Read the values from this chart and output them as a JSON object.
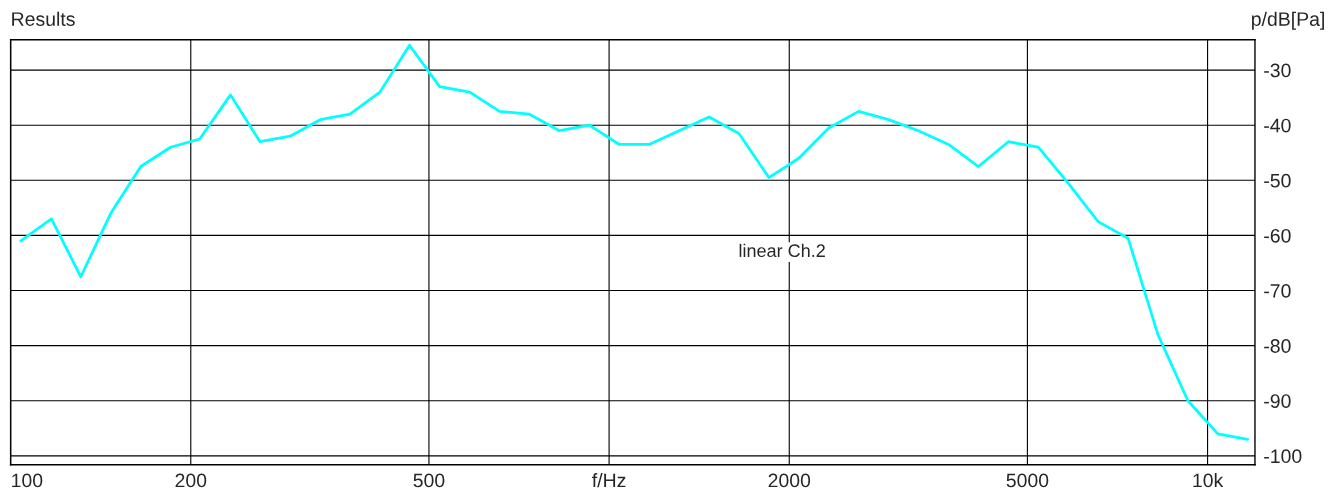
{
  "chart_data": {
    "type": "line",
    "title": "Results",
    "ylabel": "p/dB[Pa]",
    "x": [
      104,
      117,
      131,
      147,
      165,
      185,
      207,
      233,
      261,
      293,
      329,
      369,
      414,
      464,
      521,
      585,
      656,
      736,
      826,
      927,
      1040,
      1167,
      1309,
      1469,
      1648,
      1849,
      2075,
      2328,
      2612,
      2931,
      3289,
      3690,
      4141,
      4646,
      5213,
      5849,
      6563,
      7364,
      8262,
      9271,
      10402,
      11671
    ],
    "series": [
      {
        "name": "linear Ch.2",
        "color": "#00ffff",
        "values": [
          -61,
          -57,
          -67.5,
          -56,
          -47.5,
          -44,
          -42.5,
          -34.5,
          -43,
          -42,
          -39,
          -38,
          -34,
          -25.5,
          -33,
          -34,
          -37.5,
          -38,
          -41,
          -40,
          -43.5,
          -43.5,
          -41,
          -38.5,
          -41.5,
          -49.5,
          -46,
          -40.5,
          -37.5,
          -39,
          -41,
          -43.5,
          -47.5,
          -43,
          -44,
          -50.5,
          -57.5,
          -60.5,
          -78,
          -90,
          -96,
          -97
        ]
      }
    ],
    "log": "x",
    "xlim": [
      100,
      12000
    ],
    "xticks": [
      100,
      200,
      500,
      {
        "value": 1000,
        "label": "f/Hz"
      },
      2000,
      5000,
      {
        "value": 10000,
        "label": "10k"
      }
    ],
    "ylim": [
      -101.6,
      -24.5
    ],
    "yticks": [
      -30,
      -40,
      -50,
      -60,
      -70,
      -80,
      -90,
      -100
    ],
    "grid": true,
    "marker": "none",
    "line_style": "solid"
  }
}
